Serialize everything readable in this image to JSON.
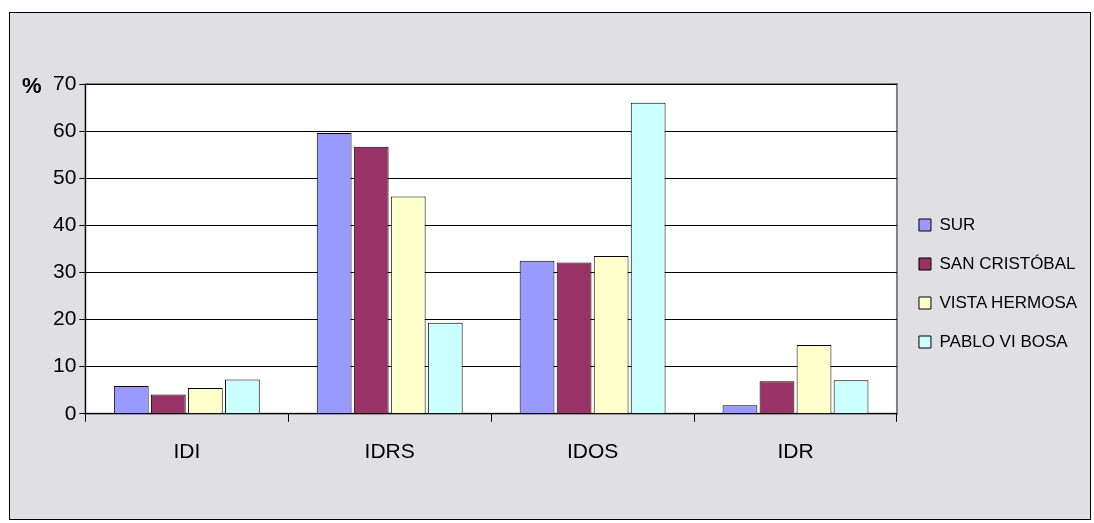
{
  "chart_data": {
    "type": "bar",
    "ylabel": "%",
    "categories": [
      "IDI",
      "IDRS",
      "IDOS",
      "IDR"
    ],
    "series": [
      {
        "name": "SUR",
        "color": "#9999ff",
        "values": [
          5.9,
          59.6,
          32.5,
          1.8
        ]
      },
      {
        "name": "SAN CRISTÓBAL",
        "color": "#993366",
        "values": [
          4.1,
          56.7,
          32.1,
          6.9
        ]
      },
      {
        "name": "VISTA HERMOSA",
        "color": "#ffffcc",
        "values": [
          5.5,
          46.1,
          33.5,
          14.6
        ]
      },
      {
        "name": "PABLO VI BOSA",
        "color": "#ccffff",
        "values": [
          7.3,
          19.3,
          66,
          7.1
        ]
      }
    ],
    "ylim": [
      0,
      70
    ],
    "yticks": [
      0,
      10,
      20,
      30,
      40,
      50,
      60,
      70
    ],
    "grid": "y",
    "legend": "right"
  }
}
